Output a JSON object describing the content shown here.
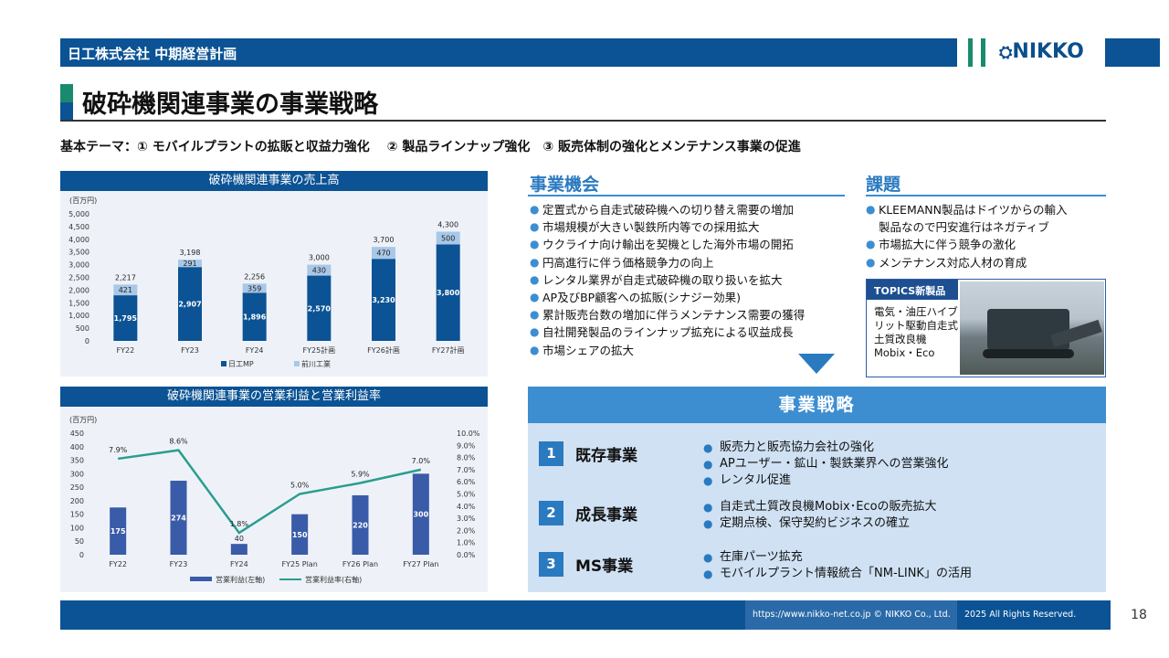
{
  "header": {
    "company_title": "日工株式会社 中期経営計画",
    "logo": "NIKKO"
  },
  "page_title": "破砕機関連事業の事業戦略",
  "theme": "基本テーマ：① モバイルプラントの拡販と収益力強化　 ② 製品ラインナップ強化　③ 販売体制の強化とメンテナンス事業の促進",
  "chart_data": [
    {
      "type": "bar",
      "title": "破砕機関連事業の売上高",
      "unit": "(百万円)",
      "categories": [
        "FY22",
        "FY23",
        "FY24",
        "FY25計画",
        "FY26計画",
        "FY27計画"
      ],
      "series": [
        {
          "name": "日工MP",
          "values": [
            1795,
            2907,
            1896,
            2570,
            3230,
            3800
          ],
          "color": "#0b5394"
        },
        {
          "name": "前川工業",
          "values": [
            421,
            291,
            359,
            430,
            470,
            500
          ],
          "color": "#a9c8e8"
        }
      ],
      "totals": [
        2217,
        3198,
        2256,
        3000,
        3700,
        4300
      ],
      "ylim": [
        0,
        5000
      ],
      "yticks": [
        0,
        500,
        1000,
        1500,
        2000,
        2500,
        3000,
        3500,
        4000,
        4500,
        5000
      ],
      "stacked": true,
      "legend": "bottom"
    },
    {
      "type": "bar",
      "title": "破砕機関連事業の営業利益と営業利益率",
      "unit": "(百万円)",
      "categories": [
        "FY22",
        "FY23",
        "FY24",
        "FY25 Plan",
        "FY26 Plan",
        "FY27 Plan"
      ],
      "series": [
        {
          "name": "営業利益(左軸)",
          "type": "bar",
          "values": [
            175,
            274,
            40,
            150,
            220,
            300
          ],
          "color": "#3a5ba8"
        },
        {
          "name": "営業利益率(右軸)",
          "type": "line",
          "values": [
            7.9,
            8.6,
            1.8,
            5.0,
            5.9,
            7.0
          ],
          "labels": [
            "7.9%",
            "8.6%",
            "1.8%",
            "5.0%",
            "5.9%",
            "7.0%"
          ],
          "color": "#2a9d8f"
        }
      ],
      "ylim": [
        0,
        450
      ],
      "yticks": [
        0,
        50,
        100,
        150,
        200,
        250,
        300,
        350,
        400,
        450
      ],
      "y2lim": [
        0,
        10
      ],
      "y2ticks": [
        "0.0%",
        "1.0%",
        "2.0%",
        "3.0%",
        "4.0%",
        "5.0%",
        "6.0%",
        "7.0%",
        "8.0%",
        "9.0%",
        "10.0%"
      ],
      "legend": "bottom"
    }
  ],
  "opportunity": {
    "title": "事業機会",
    "items": [
      "定置式から自走式破砕機への切り替え需要の増加",
      "市場規模が大きい製鉄所内等での採用拡大",
      "ウクライナ向け輸出を契機とした海外市場の開拓",
      "円高進行に伴う価格競争力の向上",
      "レンタル業界が自走式破砕機の取り扱いを拡大",
      " AP及びBP顧客への拡販(シナジー効果)",
      "累計販売台数の増加に伴うメンテナンス需要の獲得",
      "自社開発製品のラインナップ拡充による収益成長",
      "市場シェアの拡大"
    ]
  },
  "issues": {
    "title": "課題",
    "items": [
      " KLEEMANN製品はドイツからの輸入",
      "市場拡大に伴う競争の激化",
      "メンテナンス対応人材の育成"
    ],
    "item0_cont": "製品なので円安進行はネガティブ"
  },
  "topics": {
    "head": "TOPICS新製品",
    "text": "電気・油圧ハイブリット駆動自走式土質改良機Mobix・Eco"
  },
  "strategy": {
    "title": "事業戦略",
    "rows": [
      {
        "num": "1",
        "label": "既存事業",
        "items": [
          "販売力と販売協力会社の強化",
          "APユーザー・鉱山・製鉄業界への営業強化",
          "レンタル促進"
        ]
      },
      {
        "num": "2",
        "label": "成長事業",
        "items": [
          "自走式土質改良機Mobix･Ecoの販売拡大",
          "定期点検、保守契約ビジネスの確立"
        ]
      },
      {
        "num": "3",
        "label": "MS事業",
        "items": [
          "在庫パーツ拡充",
          "モバイルプラント情報統合「NM-LINK」の活用"
        ]
      }
    ]
  },
  "footer": {
    "url": "https://www.nikko-net.co.jp © NIKKO Co., Ltd.",
    "rights": "2025 All Rights Reserved.",
    "page": "18"
  }
}
